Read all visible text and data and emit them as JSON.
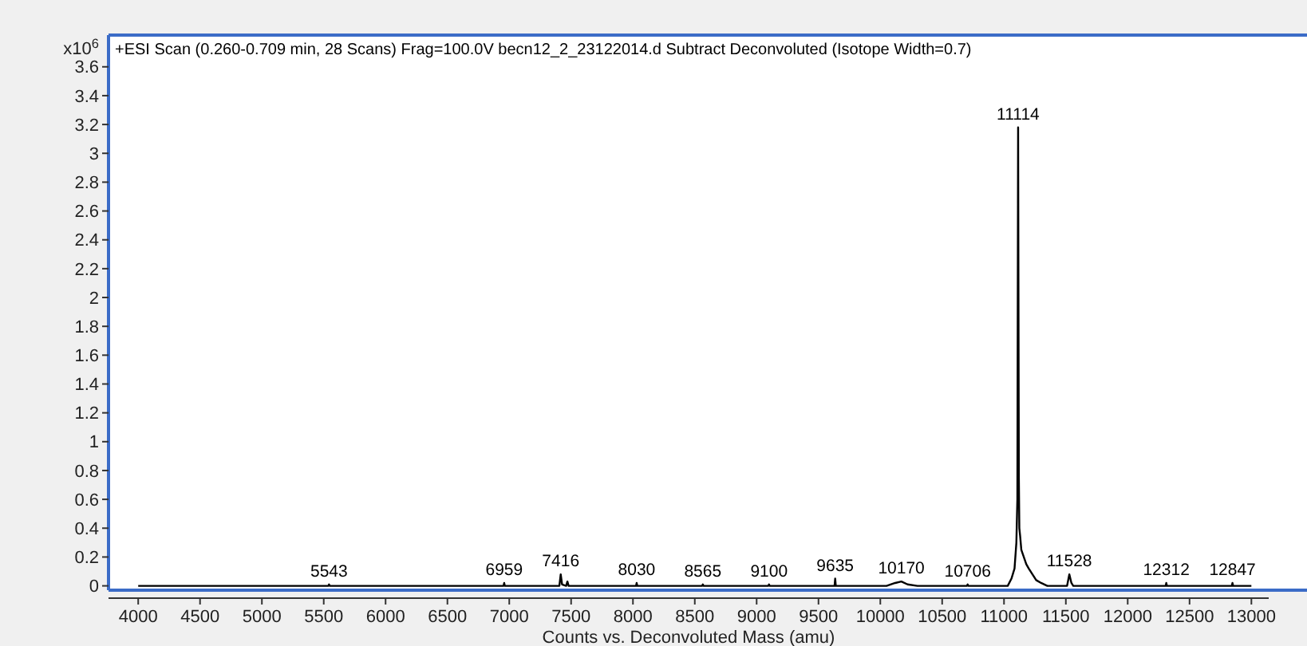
{
  "chart_data": {
    "type": "line",
    "title": "+ESI Scan (0.260-0.709 min, 28 Scans) Frag=100.0V becn12_2_23122014.d  Subtract Deconvoluted (Isotope Width=0.7)",
    "xlabel": "Counts vs. Deconvoluted Mass (amu)",
    "ylabel": "x10$^{6}$",
    "xlim": [
      3760,
      13140
    ],
    "ylim": [
      -0.03,
      3.82
    ],
    "xticks": [
      4000,
      4500,
      5000,
      5500,
      6000,
      6500,
      7000,
      7500,
      8000,
      8500,
      9000,
      9500,
      10000,
      10500,
      11000,
      11500,
      12000,
      12500,
      13000
    ],
    "yticks": [
      0,
      0.2,
      0.4,
      0.6,
      0.8,
      1,
      1.2,
      1.4,
      1.6,
      1.8,
      2,
      2.2,
      2.4,
      2.6,
      2.8,
      3,
      3.2,
      3.4,
      3.6
    ],
    "grid": false,
    "marker": "none",
    "line_style": "solid",
    "series": [
      {
        "color": "#000000",
        "x": [
          4000,
          5538,
          5543,
          5548,
          6954,
          6959,
          6964,
          7405,
          7416,
          7427,
          7460,
          7470,
          7480,
          8025,
          8030,
          8035,
          8560,
          8565,
          8570,
          9095,
          9100,
          9105,
          9630,
          9635,
          9640,
          10050,
          10120,
          10170,
          10220,
          10300,
          10701,
          10706,
          10711,
          11030,
          11060,
          11085,
          11100,
          11108,
          11114,
          11120,
          11124,
          11130,
          11140,
          11160,
          11180,
          11200,
          11230,
          11260,
          11300,
          11350,
          11510,
          11528,
          11545,
          11560,
          12307,
          12312,
          12317,
          12842,
          12847,
          12852,
          13000
        ],
        "values": [
          0,
          0,
          0.01,
          0,
          0,
          0.02,
          0,
          0,
          0.08,
          0.01,
          0,
          0.03,
          0,
          0,
          0.02,
          0,
          0,
          0.01,
          0,
          0,
          0.01,
          0,
          0,
          0.05,
          0,
          0,
          0.02,
          0.03,
          0.01,
          0,
          0,
          0.01,
          0,
          0,
          0.05,
          0.12,
          0.3,
          0.6,
          3.18,
          0.75,
          0.4,
          0.35,
          0.25,
          0.2,
          0.15,
          0.12,
          0.08,
          0.04,
          0.02,
          0,
          0,
          0.08,
          0.02,
          0,
          0,
          0.02,
          0,
          0,
          0.02,
          0,
          0
        ]
      }
    ],
    "annotations": [
      {
        "text": "5543",
        "x": 5543,
        "y": 0.01
      },
      {
        "text": "6959",
        "x": 6959,
        "y": 0.02
      },
      {
        "text": "7416",
        "x": 7416,
        "y": 0.08
      },
      {
        "text": "8030",
        "x": 8030,
        "y": 0.02
      },
      {
        "text": "8565",
        "x": 8565,
        "y": 0.01
      },
      {
        "text": "9100",
        "x": 9100,
        "y": 0.01
      },
      {
        "text": "9635",
        "x": 9635,
        "y": 0.05
      },
      {
        "text": "10170",
        "x": 10170,
        "y": 0.03
      },
      {
        "text": "10706",
        "x": 10706,
        "y": 0.01
      },
      {
        "text": "11114",
        "x": 11114,
        "y": 3.18
      },
      {
        "text": "11528",
        "x": 11528,
        "y": 0.08
      },
      {
        "text": "12312",
        "x": 12312,
        "y": 0.02
      },
      {
        "text": "12847",
        "x": 12847,
        "y": 0.02
      }
    ]
  }
}
